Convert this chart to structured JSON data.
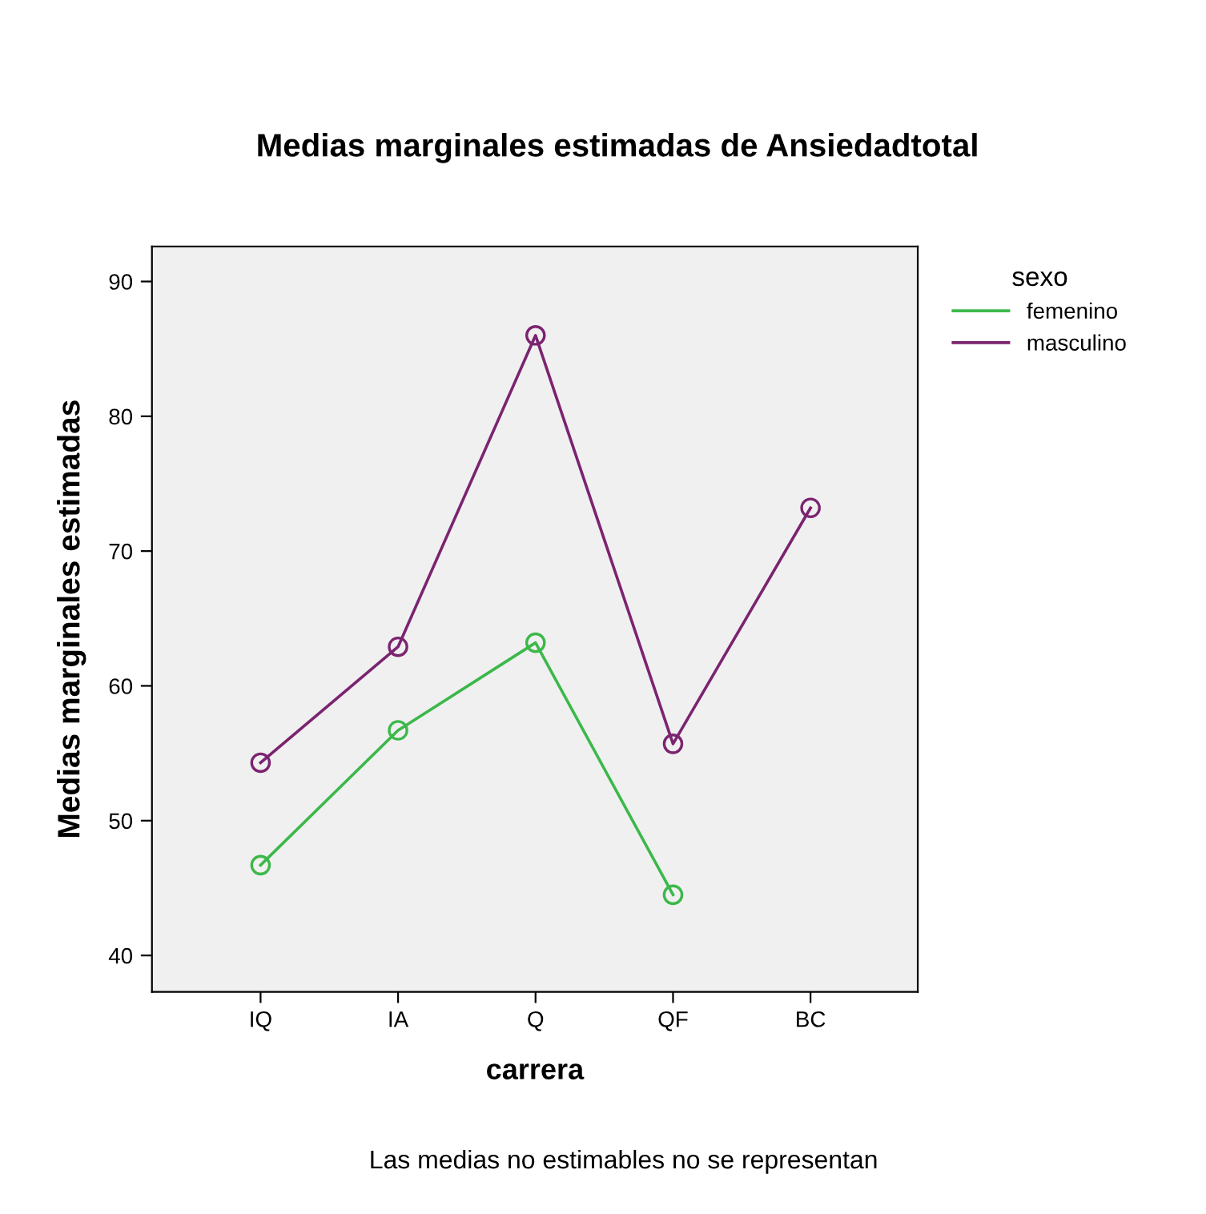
{
  "chart_data": {
    "type": "line",
    "title": "Medias marginales estimadas de Ansiedadtotal",
    "xlabel": "carrera",
    "ylabel": "Medias marginales estimadas",
    "legend_title": "sexo",
    "categories": [
      "IQ",
      "IA",
      "Q",
      "QF",
      "BC"
    ],
    "series": [
      {
        "name": "femenino",
        "color": "#3cb84a",
        "values": [
          46.7,
          56.7,
          63.2,
          44.5,
          null
        ]
      },
      {
        "name": "masculino",
        "color": "#7b2470",
        "values": [
          54.3,
          62.9,
          86.0,
          55.7,
          73.2
        ]
      }
    ],
    "ylim": [
      37.3,
      92.6
    ],
    "yticks": [
      40,
      50,
      60,
      70,
      80,
      90
    ],
    "grid": false,
    "legend": "top right",
    "marker": "circle",
    "line_style": "solid",
    "annotations": [
      "Las medias no estimables no se representan"
    ]
  }
}
